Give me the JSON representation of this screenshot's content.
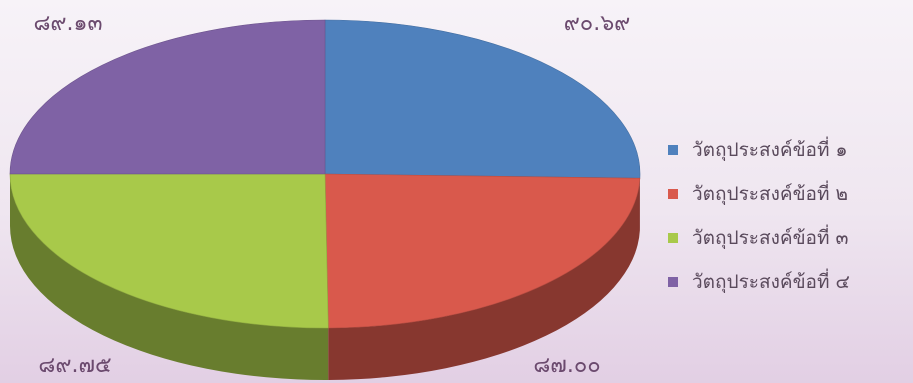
{
  "chart_data": {
    "type": "pie",
    "title": "",
    "legend_position": "right",
    "slices": [
      {
        "label": "วัตถุประสงค์ข้อที่ ๑",
        "value": 90.69,
        "display_value": "๙๐.๖๙",
        "color": "#4f81bd"
      },
      {
        "label": "วัตถุประสงค์ข้อที่ ๒",
        "value": 87.0,
        "display_value": "๘๗.๐๐",
        "color": "#d9594c"
      },
      {
        "label": "วัตถุประสงค์ข้อที่ ๓",
        "value": 89.75,
        "display_value": "๘๙.๗๕",
        "color": "#a8c94a"
      },
      {
        "label": "วัตถุประสงค์ข้อที่ ๔",
        "value": 89.13,
        "display_value": "๘๙.๑๓",
        "color": "#7f62a5"
      }
    ]
  }
}
